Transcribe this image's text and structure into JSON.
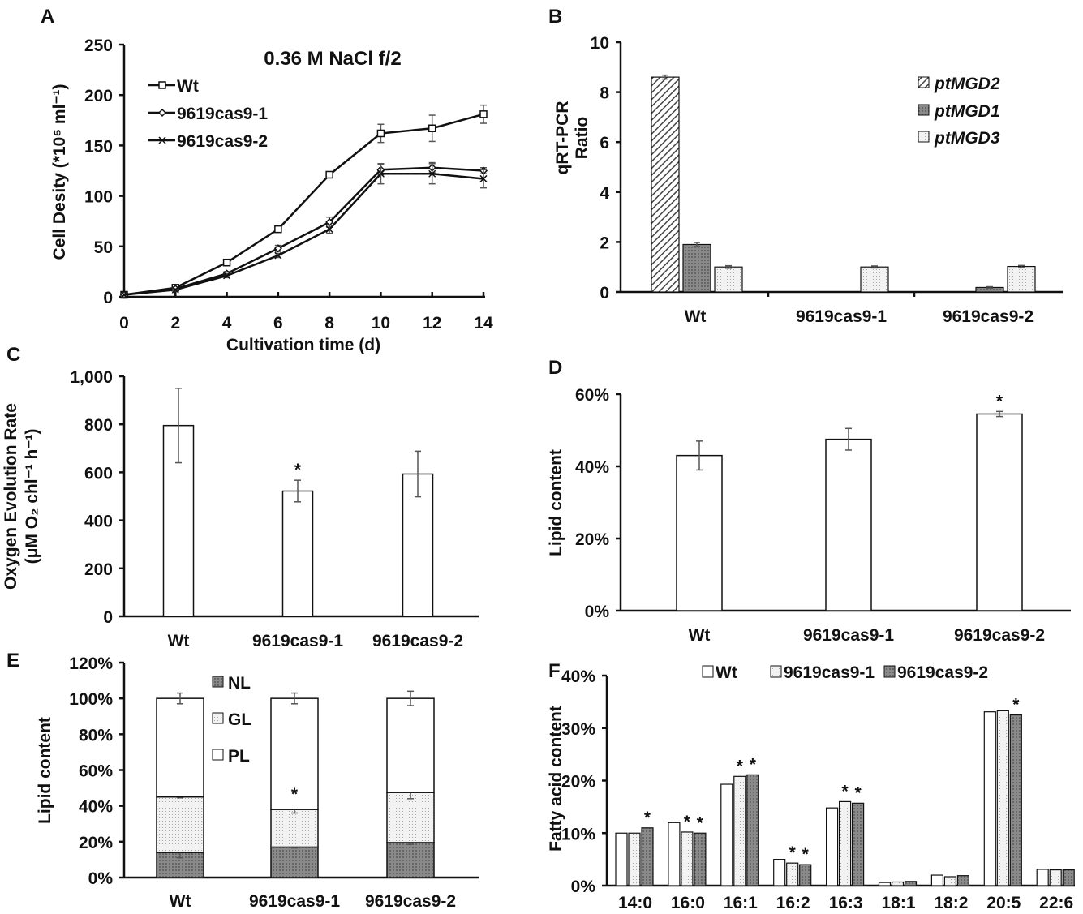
{
  "chart_data": [
    {
      "panel": "A",
      "type": "line",
      "title": "0.36 M NaCl f/2",
      "xlabel": "Cultivation time (d)",
      "ylabel": "Cell Desity (*10⁵ ml⁻¹)",
      "x": [
        0,
        2,
        4,
        6,
        8,
        10,
        12,
        14
      ],
      "xticks": [
        "0",
        "2",
        "4",
        "6",
        "8",
        "10",
        "12",
        "14"
      ],
      "yticks": [
        "0",
        "50",
        "100",
        "150",
        "200",
        "250"
      ],
      "ylim": [
        0,
        250
      ],
      "legend": "top-left",
      "series": [
        {
          "name": "Wt",
          "marker": "square",
          "values": [
            2,
            9,
            34,
            67,
            121,
            162,
            167,
            181
          ],
          "err": [
            1,
            1,
            2,
            2,
            2,
            9,
            13,
            9
          ]
        },
        {
          "name": "9619cas9-1",
          "marker": "diamond",
          "values": [
            2,
            8,
            23,
            48,
            74,
            126,
            128,
            125
          ],
          "err": [
            1,
            1,
            2,
            3,
            5,
            5,
            5,
            3
          ]
        },
        {
          "name": "9619cas9-2",
          "marker": "x",
          "values": [
            2,
            7,
            21,
            41,
            67,
            122,
            122,
            117
          ],
          "err": [
            1,
            1,
            2,
            2,
            4,
            10,
            10,
            9
          ]
        }
      ]
    },
    {
      "panel": "B",
      "type": "bar",
      "ylabel": [
        "qRT-PCR",
        "Ratio"
      ],
      "categories": [
        "Wt",
        "9619cas9-1",
        "9619cas9-2"
      ],
      "yticks": [
        "0",
        "2",
        "4",
        "6",
        "8",
        "10"
      ],
      "ylim": [
        0,
        10
      ],
      "legend": "top-right",
      "series": [
        {
          "name": "ptMGD2",
          "pattern": "hatch",
          "values": [
            8.6,
            0,
            0
          ],
          "err": [
            0.08,
            0,
            0
          ]
        },
        {
          "name": "ptMGD1",
          "pattern": "dark",
          "values": [
            1.9,
            0,
            0.18
          ],
          "err": [
            0.08,
            0,
            0.03
          ]
        },
        {
          "name": "ptMGD3",
          "pattern": "dots",
          "values": [
            1.0,
            1.0,
            1.02
          ],
          "err": [
            0.05,
            0.04,
            0.04
          ]
        }
      ]
    },
    {
      "panel": "C",
      "type": "bar",
      "ylabel": [
        "Oxygen Evolution Rate",
        "(μM O₂ chl⁻¹ h⁻¹)"
      ],
      "categories": [
        "Wt",
        "9619cas9-1",
        "9619cas9-2"
      ],
      "yticks": [
        "0",
        "200",
        "400",
        "600",
        "800",
        "1,000"
      ],
      "ylim": [
        0,
        1000
      ],
      "values": [
        795,
        522,
        593
      ],
      "err": [
        155,
        45,
        95
      ],
      "stars": [
        "",
        "*",
        ""
      ]
    },
    {
      "panel": "D",
      "type": "bar",
      "ylabel": "Lipid content",
      "categories": [
        "Wt",
        "9619cas9-1",
        "9619cas9-2"
      ],
      "yticks": [
        "0%",
        "20%",
        "40%",
        "60%"
      ],
      "ylim": [
        0,
        60
      ],
      "values": [
        43,
        47.5,
        54.5
      ],
      "err": [
        4,
        3,
        0.7
      ],
      "stars": [
        "",
        "",
        "*"
      ]
    },
    {
      "panel": "E",
      "type": "stacked-bar",
      "ylabel": "Lipid content",
      "categories": [
        "Wt",
        "9619cas9-1",
        "9619cas9-2"
      ],
      "yticks": [
        "0%",
        "20%",
        "40%",
        "60%",
        "80%",
        "100%",
        "120%"
      ],
      "ylim": [
        0,
        120
      ],
      "legend": "top-left",
      "series": [
        {
          "name": "NL",
          "pattern": "dark",
          "values": [
            14,
            17,
            19.5
          ],
          "err": [
            3,
            0.5,
            1
          ]
        },
        {
          "name": "GL",
          "pattern": "dots",
          "values": [
            31,
            21,
            28
          ],
          "err": [
            0.5,
            2,
            3.5
          ]
        },
        {
          "name": "PL",
          "pattern": "white",
          "values": [
            55,
            62,
            52.5
          ],
          "err": [
            3,
            3,
            4
          ]
        }
      ],
      "stars": [
        "",
        "*",
        ""
      ]
    },
    {
      "panel": "F",
      "type": "bar",
      "ylabel": "Fatty acid content",
      "categories": [
        "14:0",
        "16:0",
        "16:1",
        "16:2",
        "16:3",
        "18:1",
        "18:2",
        "20:5",
        "22:6"
      ],
      "yticks": [
        "0%",
        "10%",
        "20%",
        "30%",
        "40%"
      ],
      "ylim": [
        0,
        40
      ],
      "legend": "top",
      "series": [
        {
          "name": "Wt",
          "pattern": "white",
          "values": [
            10,
            12,
            19.3,
            5,
            14.8,
            0.6,
            2,
            33.1,
            3.1
          ],
          "stars": [
            "",
            "",
            "",
            "",
            "",
            "",
            "",
            "",
            ""
          ]
        },
        {
          "name": "9619cas9-1",
          "pattern": "dots",
          "values": [
            10,
            10.2,
            20.8,
            4.3,
            16,
            0.7,
            1.7,
            33.3,
            3
          ],
          "stars": [
            "",
            "*",
            "*",
            "*",
            "*",
            "",
            "",
            "",
            ""
          ]
        },
        {
          "name": "9619cas9-2",
          "pattern": "dark",
          "values": [
            11,
            10,
            21.1,
            4,
            15.7,
            0.8,
            1.9,
            32.5,
            3
          ],
          "stars": [
            "*",
            "*",
            "*",
            "*",
            "*",
            "",
            "",
            "*",
            ""
          ]
        }
      ]
    }
  ],
  "panel_labels": [
    "A",
    "B",
    "C",
    "D",
    "E",
    "F"
  ]
}
